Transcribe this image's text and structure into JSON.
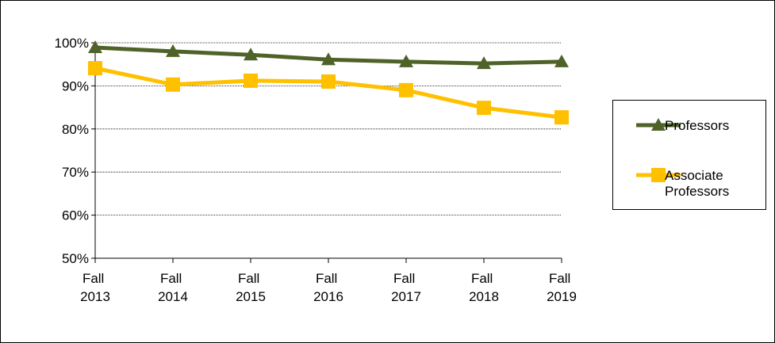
{
  "chart_data": {
    "type": "line",
    "categories": [
      "Fall 2013",
      "Fall 2014",
      "Fall 2015",
      "Fall 2016",
      "Fall 2017",
      "Fall 2018",
      "Fall 2019"
    ],
    "series": [
      {
        "name": "Professors",
        "color": "#4f6228",
        "marker": "triangle",
        "values": [
          98.9,
          98.0,
          97.2,
          96.1,
          95.6,
          95.2,
          95.6
        ]
      },
      {
        "name": "Associate Professors",
        "color": "#ffc000",
        "marker": "square",
        "values": [
          94.1,
          90.3,
          91.2,
          91.0,
          89.0,
          84.9,
          82.7
        ]
      }
    ],
    "ylim": [
      50,
      100
    ],
    "yticks": [
      {
        "value": 50,
        "label": "50%"
      },
      {
        "value": 60,
        "label": "60%"
      },
      {
        "value": 70,
        "label": "70%"
      },
      {
        "value": 80,
        "label": "80%"
      },
      {
        "value": 90,
        "label": "90%"
      },
      {
        "value": 100,
        "label": "100%"
      }
    ],
    "grid": true,
    "legend": "right"
  }
}
